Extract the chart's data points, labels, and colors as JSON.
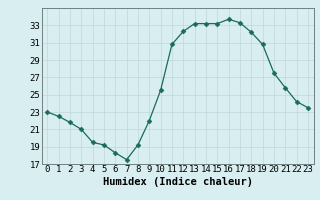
{
  "x": [
    0,
    1,
    2,
    3,
    4,
    5,
    6,
    7,
    8,
    9,
    10,
    11,
    12,
    13,
    14,
    15,
    16,
    17,
    18,
    19,
    20,
    21,
    22,
    23
  ],
  "y": [
    23.0,
    22.5,
    21.8,
    21.0,
    19.5,
    19.2,
    18.3,
    17.5,
    19.2,
    22.0,
    25.5,
    30.8,
    32.3,
    33.2,
    33.2,
    33.2,
    33.7,
    33.3,
    32.2,
    30.8,
    27.5,
    25.8,
    24.2,
    23.5
  ],
  "line_color": "#1a6b5a",
  "marker": "D",
  "marker_size": 2.5,
  "bg_color": "#d8eef0",
  "grid_color": "#c0d8da",
  "grid_color_minor": "#d0e5e8",
  "xlabel": "Humidex (Indice chaleur)",
  "ylim": [
    17,
    35
  ],
  "xlim": [
    -0.5,
    23.5
  ],
  "yticks": [
    17,
    19,
    21,
    23,
    25,
    27,
    29,
    31,
    33
  ],
  "xticks": [
    0,
    1,
    2,
    3,
    4,
    5,
    6,
    7,
    8,
    9,
    10,
    11,
    12,
    13,
    14,
    15,
    16,
    17,
    18,
    19,
    20,
    21,
    22,
    23
  ],
  "tick_fontsize": 6.5,
  "xlabel_fontsize": 7.5
}
